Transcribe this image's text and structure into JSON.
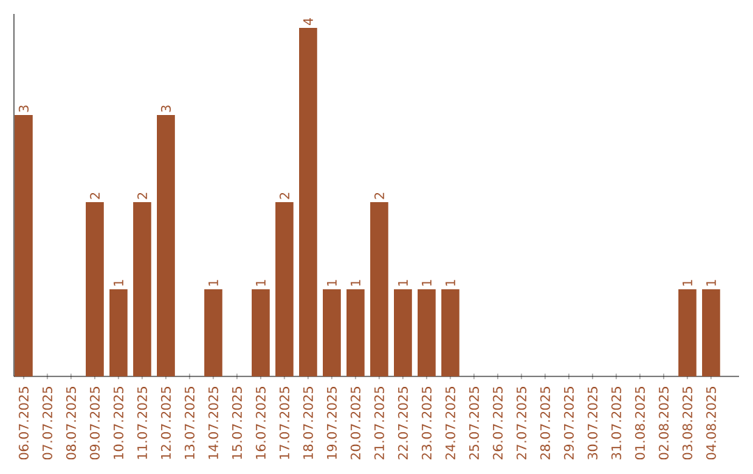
{
  "chart_data": {
    "type": "bar",
    "categories": [
      "06.07.2025",
      "07.07.2025",
      "08.07.2025",
      "09.07.2025",
      "10.07.2025",
      "11.07.2025",
      "12.07.2025",
      "13.07.2025",
      "14.07.2025",
      "15.07.2025",
      "16.07.2025",
      "17.07.2025",
      "18.07.2025",
      "19.07.2025",
      "20.07.2025",
      "21.07.2025",
      "22.07.2025",
      "23.07.2025",
      "24.07.2025",
      "25.07.2025",
      "26.07.2025",
      "27.07.2025",
      "28.07.2025",
      "29.07.2025",
      "30.07.2025",
      "31.07.2025",
      "01.08.2025",
      "02.08.2025",
      "03.08.2025",
      "04.08.2025"
    ],
    "values": [
      3,
      0,
      0,
      2,
      1,
      2,
      3,
      0,
      1,
      0,
      1,
      2,
      4,
      1,
      1,
      2,
      1,
      1,
      1,
      0,
      0,
      0,
      0,
      0,
      0,
      0,
      0,
      0,
      1,
      1
    ],
    "value_labels": [
      "3",
      null,
      null,
      "2",
      "1",
      "2",
      "3",
      null,
      "1",
      null,
      "1",
      "2",
      "4",
      "1",
      "1",
      "2",
      "1",
      "1",
      "1",
      null,
      null,
      null,
      null,
      null,
      null,
      null,
      null,
      null,
      "1",
      "1"
    ],
    "color": "#a0522d",
    "ylim": [
      0,
      4.16
    ],
    "tick_labels": "x"
  }
}
